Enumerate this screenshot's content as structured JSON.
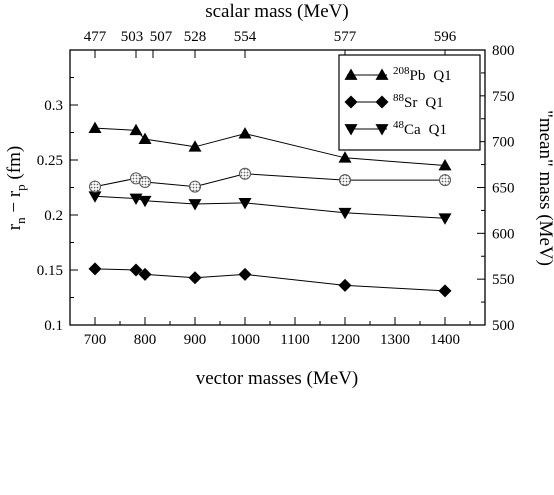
{
  "chart_data": {
    "type": "line",
    "xlabel": "vector masses (MeV)",
    "x2label": "scalar mass (MeV)",
    "ylabel_main": "r",
    "ylabel_sub_n": "n",
    "ylabel_minus": " − r",
    "ylabel_sub_p": "p",
    "ylabel_unit": " (fm)",
    "y2label": "\"mean\" mass (MeV)",
    "xlim": [
      650,
      1480
    ],
    "ylim": [
      0.1,
      0.35
    ],
    "y2lim": [
      500,
      800
    ],
    "xticks": [
      700,
      800,
      900,
      1000,
      1100,
      1200,
      1300,
      1400
    ],
    "yticks": [
      0.1,
      0.15,
      0.2,
      0.25,
      0.3
    ],
    "y2ticks": [
      500,
      550,
      600,
      650,
      700,
      750,
      800
    ],
    "x2ticks": [
      {
        "x": 700,
        "label": "477"
      },
      {
        "x": 782,
        "label": "503"
      },
      {
        "x": 816,
        "label": "507"
      },
      {
        "x": 900,
        "label": "528"
      },
      {
        "x": 1000,
        "label": "554"
      },
      {
        "x": 1200,
        "label": "577"
      },
      {
        "x": 1400,
        "label": "596"
      }
    ],
    "series": [
      {
        "name": "208Pb Q1",
        "marker": "triangle-up",
        "axis": "left",
        "x": [
          700,
          782,
          800,
          900,
          1000,
          1200,
          1400
        ],
        "y": [
          0.279,
          0.277,
          0.269,
          0.262,
          0.274,
          0.252,
          0.245
        ]
      },
      {
        "name": "88Sr Q1",
        "marker": "diamond",
        "axis": "left",
        "x": [
          700,
          782,
          800,
          900,
          1000,
          1200,
          1400
        ],
        "y": [
          0.151,
          0.15,
          0.146,
          0.143,
          0.146,
          0.136,
          0.131
        ]
      },
      {
        "name": "48Ca Q1",
        "marker": "triangle-down",
        "axis": "left",
        "x": [
          700,
          782,
          800,
          900,
          1000,
          1200,
          1400
        ],
        "y": [
          0.217,
          0.215,
          0.213,
          0.21,
          0.211,
          0.202,
          0.197
        ]
      },
      {
        "name": "",
        "marker": "circle-hatched",
        "axis": "right",
        "x": [
          700,
          782,
          800,
          900,
          1000,
          1200,
          1400
        ],
        "y": [
          651,
          660,
          656,
          651,
          665,
          658,
          658
        ]
      }
    ],
    "legend": [
      {
        "sup": "208",
        "el": "Pb",
        "tag": "Q1",
        "marker": "triangle-up"
      },
      {
        "sup": "88",
        "el": "Sr",
        "tag": "Q1",
        "marker": "diamond"
      },
      {
        "sup": "48",
        "el": "Ca",
        "tag": "Q1",
        "marker": "triangle-down"
      }
    ],
    "legend_position": "top-right",
    "grid": false
  }
}
